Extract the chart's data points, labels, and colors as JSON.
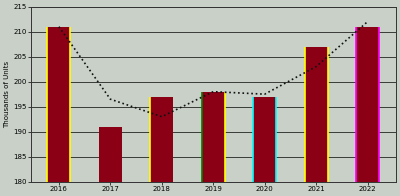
{
  "years": [
    "2016",
    "2017",
    "2018",
    "2019",
    "2020",
    "2021",
    "2022"
  ],
  "bar_values": [
    211,
    191,
    197,
    198,
    197,
    207,
    211
  ],
  "line_values": [
    211,
    196.5,
    193,
    198,
    197.5,
    203,
    212
  ],
  "bar_color": "#8B0015",
  "line_color": "#111111",
  "ylabel": "Thousands of Units",
  "ylim": [
    180,
    215
  ],
  "yticks": [
    180,
    185,
    190,
    195,
    200,
    205,
    210,
    215
  ],
  "bar_edge_left": [
    "yellow",
    null,
    "yellow",
    "green",
    "cyan",
    "yellow",
    "magenta"
  ],
  "bar_edge_right": [
    "yellow",
    null,
    null,
    "yellow",
    "cyan",
    "yellow",
    "magenta"
  ],
  "background_color": "#c8d0c8",
  "grid_color": "#000000",
  "bar_width": 0.45,
  "tick_fontsize": 5,
  "ylabel_fontsize": 5
}
